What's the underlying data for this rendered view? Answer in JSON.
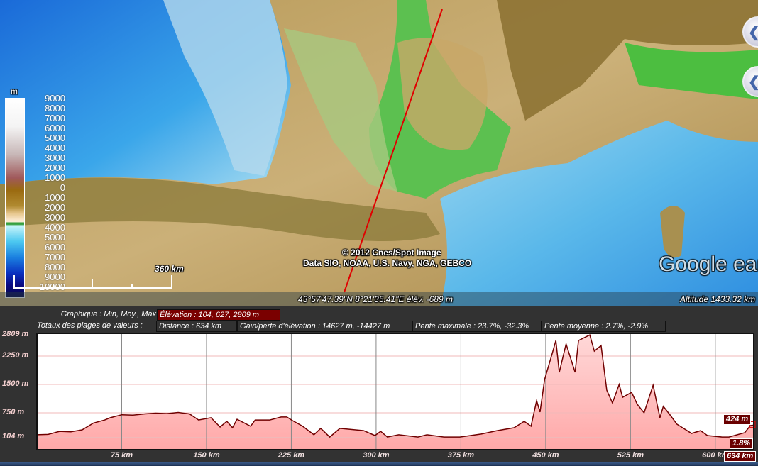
{
  "map": {
    "legend_unit": "m",
    "legend_labels": [
      "9000",
      "8000",
      "7000",
      "6000",
      "5000",
      "4000",
      "3000",
      "2000",
      "1000",
      "0",
      "1000",
      "2000",
      "3000",
      "4000",
      "5000",
      "6000",
      "7000",
      "8000",
      "9000",
      "10000"
    ],
    "scale_label": "360  km",
    "copyright_line1": "© 2012 Cnes/Spot Image",
    "copyright_line2": "Data SIO, NOAA, U.S. Navy, NGA, GEBCO",
    "logo": "Google earth",
    "status_coords": "43°57'47.39\"N    8°21'35.41\"E  élév. -689 m",
    "status_altitude": "Altitude  1433.32 km",
    "path_color": "#e00000"
  },
  "panel": {
    "graph_label": "Graphique : Min, Moy., Max",
    "elevation_summary": "Élévation : 104, 627, 2809 m",
    "totals_label": "Totaux des plages de valeurs :",
    "distance": "Distance : 634 km",
    "gain_loss": "Gain/perte d'élévation : 14627 m, -14427 m",
    "max_slope": "Pente maximale : 23.7%, -32.3%",
    "avg_slope": "Pente moyenne : 2.7%, -2.9%",
    "cursor_elevation": "424 m",
    "cursor_slope": "1.8%",
    "cursor_distance": "634 km"
  },
  "chart_data": {
    "type": "area",
    "xlabel": "",
    "ylabel": "",
    "xlim": [
      0,
      634
    ],
    "ylim": [
      -225,
      2850
    ],
    "y_ticks": [
      104,
      750,
      1500,
      2250,
      2809
    ],
    "y_tick_labels": [
      "104 m",
      "750 m",
      "1500 m",
      "2250 m",
      "2809 m"
    ],
    "x_ticks": [
      75,
      150,
      225,
      300,
      375,
      450,
      525,
      600
    ],
    "x_tick_labels": [
      "75 km",
      "150 km",
      "225 km",
      "300 km",
      "375 km",
      "450 km",
      "525 km",
      "600 km"
    ],
    "grid": true,
    "fill_color": "#ffb4b4",
    "line_color": "#700000",
    "x": [
      0,
      10,
      20,
      30,
      40,
      50,
      60,
      65,
      75,
      85,
      95,
      105,
      115,
      125,
      135,
      143,
      154,
      162,
      168,
      173,
      177,
      189,
      193,
      206,
      216,
      221,
      226,
      235,
      245,
      251,
      259,
      268,
      289,
      299,
      304,
      310,
      320,
      337,
      345,
      360,
      374,
      393,
      407,
      422,
      431,
      437,
      442,
      445,
      449,
      456,
      459,
      462,
      468,
      476,
      479,
      489,
      493,
      499,
      504,
      509,
      515,
      518,
      526,
      531,
      537,
      545,
      551,
      554,
      560,
      566,
      579,
      587,
      593,
      606,
      612,
      626,
      631,
      634
    ],
    "y": [
      170,
      180,
      260,
      250,
      300,
      480,
      560,
      620,
      700,
      690,
      720,
      740,
      730,
      760,
      720,
      560,
      620,
      375,
      525,
      356,
      580,
      395,
      560,
      560,
      640,
      640,
      545,
      395,
      170,
      340,
      110,
      340,
      280,
      150,
      260,
      110,
      170,
      110,
      170,
      110,
      110,
      190,
      280,
      356,
      525,
      395,
      1070,
      770,
      1630,
      2340,
      2660,
      1820,
      2570,
      1820,
      2660,
      2809,
      2380,
      2530,
      1350,
      1010,
      1500,
      1160,
      1290,
      975,
      750,
      1480,
      620,
      920,
      694,
      450,
      206,
      280,
      150,
      110,
      110,
      225,
      412,
      424
    ]
  }
}
